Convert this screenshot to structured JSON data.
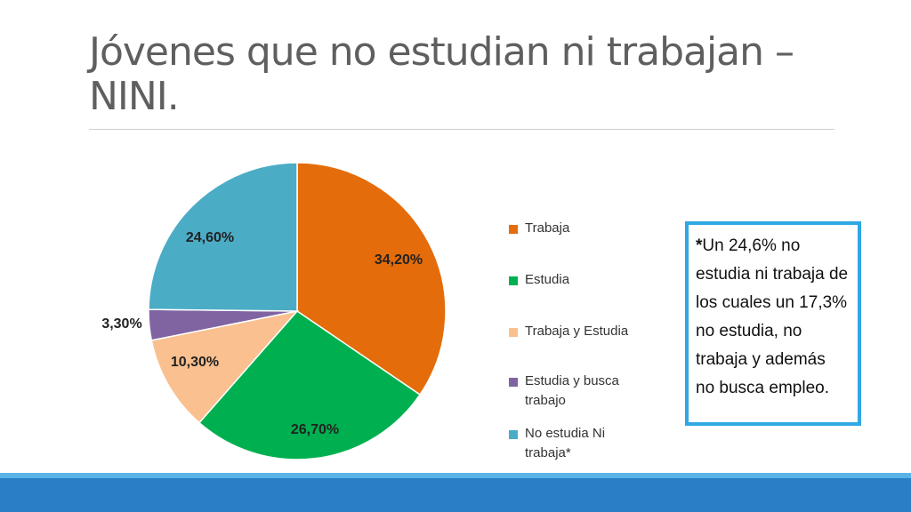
{
  "title": "Jóvenes que no estudian ni trabajan – NINI.",
  "note": {
    "asterisk": "*",
    "text": "Un 24,6% no estudia ni trabaja de los cuales un 17,3% no estudia, no trabaja y además no busca empleo."
  },
  "chart_data": {
    "type": "pie",
    "title": "",
    "slices": [
      {
        "label": "Trabaja",
        "value": 34.2,
        "display": "34,20%",
        "color": "#e46c0a"
      },
      {
        "label": "Estudia",
        "value": 26.7,
        "display": "26,70%",
        "color": "#00b050"
      },
      {
        "label": "Trabaja y Estudia",
        "value": 10.3,
        "display": "10,30%",
        "color": "#fac090"
      },
      {
        "label": "Estudia y busca trabajo",
        "value": 3.3,
        "display": "3,30%",
        "color": "#8064a2"
      },
      {
        "label": "No estudia Ni trabaja*",
        "value": 24.6,
        "display": "24,60%",
        "color": "#4bacc6"
      }
    ],
    "start_angle_deg": 0,
    "direction": "clockwise",
    "legend_position": "right"
  },
  "legend": {
    "items": [
      {
        "label": "Trabaja",
        "color": "#e46c0a"
      },
      {
        "label": "Estudia",
        "color": "#00b050"
      },
      {
        "label": "Trabaja y Estudia",
        "color": "#fac090"
      },
      {
        "label": "Estudia y busca trabajo",
        "color": "#8064a2"
      },
      {
        "label": "No estudia Ni trabaja*",
        "color": "#4bacc6"
      }
    ]
  },
  "colors": {
    "title": "#5f5f5f",
    "note_border": "#2fa8e4",
    "footer_dark": "#2a7fc4",
    "footer_light": "#59b3e6"
  }
}
